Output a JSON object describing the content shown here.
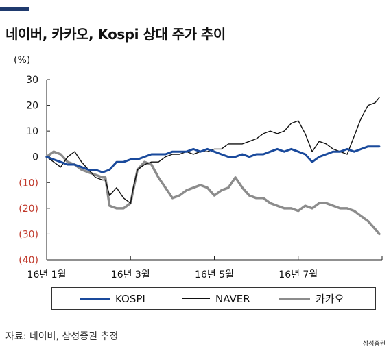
{
  "title": "네이버, 카카오, Kospi 상대 주가 추이",
  "unit": "(%)",
  "source": "자료: 네이버, 삼성증권 추정",
  "brand": "삼성증권",
  "colors": {
    "kospi": "#1a4a9c",
    "naver": "#111111",
    "kakao": "#8c8c8c",
    "negative_tick": "#c0392b"
  },
  "chart_data": {
    "type": "line",
    "ylim": [
      -40,
      30
    ],
    "yticks": [
      {
        "value": 30,
        "label": "30"
      },
      {
        "value": 20,
        "label": "20"
      },
      {
        "value": 10,
        "label": "10"
      },
      {
        "value": 0,
        "label": "0"
      },
      {
        "value": -10,
        "label": "(10)"
      },
      {
        "value": -20,
        "label": "(20)"
      },
      {
        "value": -30,
        "label": "(30)"
      },
      {
        "value": -40,
        "label": "(40)"
      }
    ],
    "xlim": [
      0,
      240
    ],
    "xticks": [
      {
        "value": 0,
        "label": "16년 1월"
      },
      {
        "value": 60,
        "label": "16년 3월"
      },
      {
        "value": 120,
        "label": "16년 5월"
      },
      {
        "value": 180,
        "label": "16년 7월"
      }
    ],
    "series": [
      {
        "name": "KOSPI",
        "x": [
          0,
          5,
          10,
          15,
          20,
          25,
          30,
          35,
          40,
          45,
          50,
          55,
          60,
          65,
          70,
          75,
          80,
          85,
          90,
          95,
          100,
          105,
          110,
          115,
          120,
          125,
          130,
          135,
          140,
          145,
          150,
          155,
          160,
          165,
          170,
          175,
          180,
          185,
          190,
          195,
          200,
          205,
          210,
          215,
          220,
          225,
          230,
          235,
          238
        ],
        "y": [
          0,
          -1,
          -2,
          -3,
          -3,
          -4,
          -5,
          -5,
          -6,
          -5,
          -2,
          -2,
          -1,
          -1,
          0,
          1,
          1,
          1,
          2,
          2,
          2,
          3,
          2,
          3,
          2,
          1,
          0,
          0,
          1,
          0,
          1,
          1,
          2,
          3,
          2,
          3,
          2,
          1,
          -2,
          0,
          1,
          2,
          2,
          3,
          2,
          3,
          4,
          4,
          4
        ]
      },
      {
        "name": "NAVER",
        "x": [
          0,
          5,
          10,
          15,
          20,
          25,
          30,
          35,
          40,
          42,
          45,
          50,
          55,
          60,
          62,
          65,
          70,
          75,
          80,
          85,
          90,
          95,
          100,
          105,
          110,
          115,
          120,
          125,
          130,
          135,
          140,
          145,
          150,
          155,
          160,
          165,
          170,
          175,
          180,
          185,
          190,
          195,
          200,
          205,
          210,
          215,
          220,
          225,
          230,
          235,
          238
        ],
        "y": [
          0,
          -2,
          -4,
          0,
          2,
          -2,
          -5,
          -8,
          -9,
          -9,
          -15,
          -12,
          -16,
          -18,
          -12,
          -5,
          -3,
          -2,
          -2,
          0,
          1,
          1,
          2,
          1,
          2,
          2,
          3,
          3,
          5,
          5,
          5,
          6,
          7,
          9,
          10,
          9,
          10,
          13,
          14,
          9,
          2,
          6,
          5,
          3,
          2,
          1,
          8,
          15,
          20,
          21,
          23
        ]
      },
      {
        "name": "카카오",
        "x": [
          0,
          5,
          10,
          15,
          20,
          25,
          30,
          35,
          40,
          42,
          45,
          50,
          55,
          60,
          65,
          70,
          75,
          80,
          85,
          90,
          95,
          100,
          105,
          110,
          115,
          120,
          125,
          130,
          135,
          140,
          145,
          150,
          155,
          160,
          165,
          170,
          175,
          180,
          185,
          190,
          195,
          200,
          205,
          210,
          215,
          220,
          225,
          230,
          235,
          238
        ],
        "y": [
          0,
          2,
          1,
          -2,
          -3,
          -5,
          -6,
          -7,
          -8,
          -8,
          -19,
          -20,
          -20,
          -18,
          -5,
          -2,
          -3,
          -8,
          -12,
          -16,
          -15,
          -13,
          -12,
          -11,
          -12,
          -15,
          -13,
          -12,
          -8,
          -12,
          -15,
          -16,
          -16,
          -18,
          -19,
          -20,
          -20,
          -21,
          -19,
          -20,
          -18,
          -18,
          -19,
          -20,
          -20,
          -21,
          -23,
          -25,
          -28,
          -30
        ]
      }
    ]
  }
}
